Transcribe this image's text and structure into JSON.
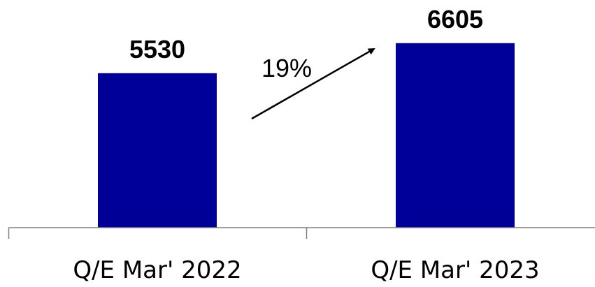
{
  "chart_data": {
    "type": "bar",
    "categories": [
      "Q/E Mar' 2022",
      "Q/E Mar' 2023"
    ],
    "values": [
      5530,
      6605
    ],
    "value_labels": [
      "5530",
      "6605"
    ],
    "ylim": [
      0,
      7000
    ],
    "grid": false,
    "bar_color": "#000099",
    "axis_color": "#808080",
    "annotation": {
      "text": "19%",
      "type": "growth-arrow"
    }
  }
}
